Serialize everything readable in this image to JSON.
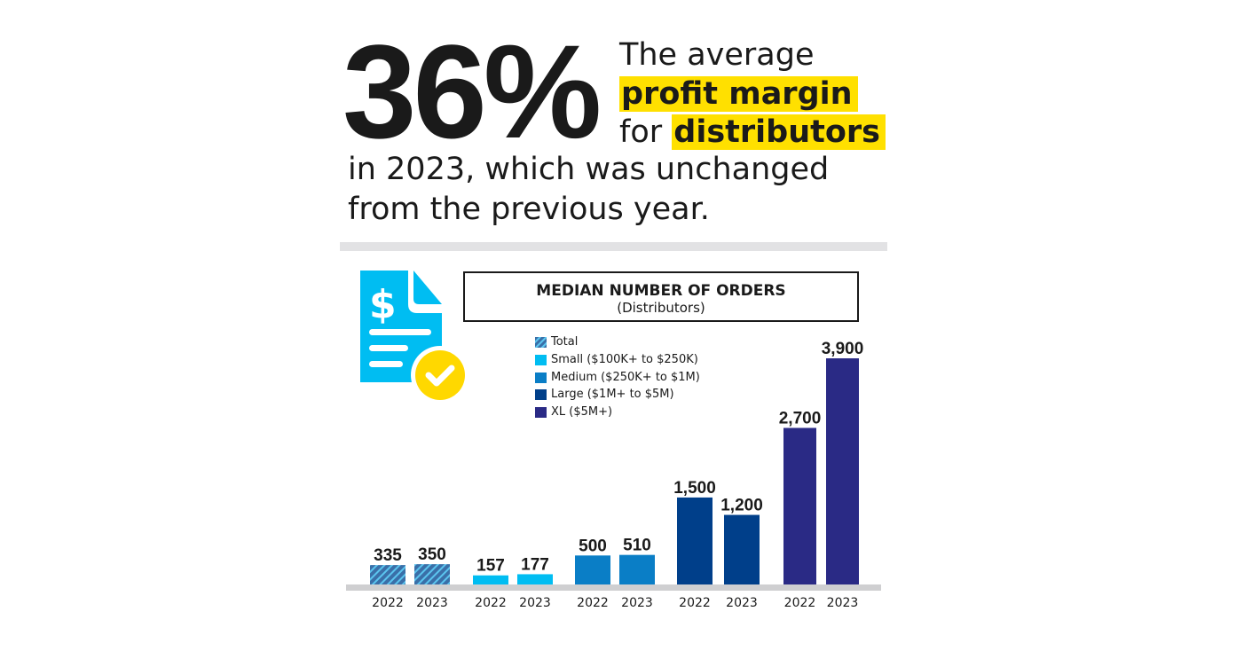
{
  "headline": {
    "stat": "36%",
    "line1": "The average",
    "line2_highlight": "profit margin",
    "line3_prefix": "for",
    "line3_highlight": "distributors",
    "line4": "in 2023, which was unchanged",
    "line5": "from the previous year.",
    "highlight_color": "#ffe000"
  },
  "icon": "invoice-document-check-icon",
  "chart_data": {
    "type": "bar",
    "title": "MEDIAN NUMBER OF ORDERS",
    "subtitle": "(Distributors)",
    "groups": [
      "Total",
      "Small ($100K+ to $250K)",
      "Medium ($250K+ to $1M)",
      "Large ($1M+ to $5M)",
      "XL ($5M+)"
    ],
    "colors": [
      "#3a6fa8",
      "#00bdf2",
      "#0a7ec6",
      "#003f8a",
      "#2a2a85"
    ],
    "categories": [
      "2022",
      "2023"
    ],
    "values": [
      [
        335,
        350
      ],
      [
        157,
        177
      ],
      [
        500,
        510
      ],
      [
        1500,
        1200
      ],
      [
        2700,
        3900
      ]
    ],
    "labels": [
      [
        "335",
        "350"
      ],
      [
        "157",
        "177"
      ],
      [
        "500",
        "510"
      ],
      [
        "1,500",
        "1,200"
      ],
      [
        "2,700",
        "3,900"
      ]
    ],
    "legend": [
      "Total",
      "Small ($100K+ to $250K)",
      "Medium ($250K+ to $1M)",
      "Large ($1M+ to $5M)",
      "XL ($5M+)"
    ],
    "legend_placement": "top-left",
    "grid": false
  }
}
